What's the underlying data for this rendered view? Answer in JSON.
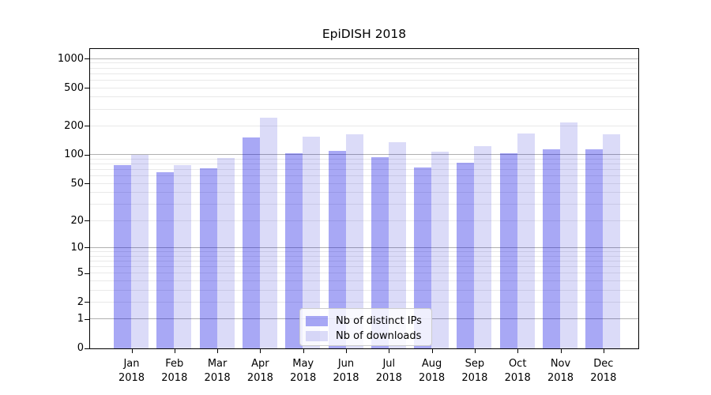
{
  "chart_data": {
    "type": "bar",
    "title": "EpiDISH 2018",
    "scale": "log1p",
    "grid": true,
    "legend_position": "lower center",
    "categories": [
      "Jan 2018",
      "Feb 2018",
      "Mar 2018",
      "Apr 2018",
      "May 2018",
      "Jun 2018",
      "Jul 2018",
      "Aug 2018",
      "Sep 2018",
      "Oct 2018",
      "Nov 2018",
      "Dec 2018"
    ],
    "series": [
      {
        "name": "Nb of distinct IPs",
        "rendered_color": "#a8a8f5",
        "fill": "rgba(6,6,226,0.35)",
        "values": [
          78,
          66,
          73,
          152,
          104,
          112,
          96,
          75,
          84,
          104,
          115,
          115
        ]
      },
      {
        "name": "Nb of downloads",
        "rendered_color": "#dbdbf8",
        "fill": "rgba(15,15,208,0.15)",
        "values": [
          100,
          78,
          93,
          245,
          155,
          166,
          138,
          108,
          124,
          168,
          220,
          166
        ]
      }
    ],
    "y_axis": {
      "tick_labels": [
        "0",
        "1",
        "2",
        "5",
        "10",
        "20",
        "50",
        "100",
        "200",
        "500",
        "1000"
      ],
      "tick_values": [
        0,
        1,
        2,
        5,
        10,
        20,
        50,
        100,
        200,
        500,
        1000
      ],
      "major_gridline_values": [
        1,
        10,
        100,
        1000
      ],
      "ylim": [
        0,
        1250
      ]
    },
    "colors": {
      "axis": "#000000",
      "major_grid": "#b0b0b0",
      "minor_grid": "#e9e9e9",
      "legend_border": "#cccccc"
    }
  }
}
